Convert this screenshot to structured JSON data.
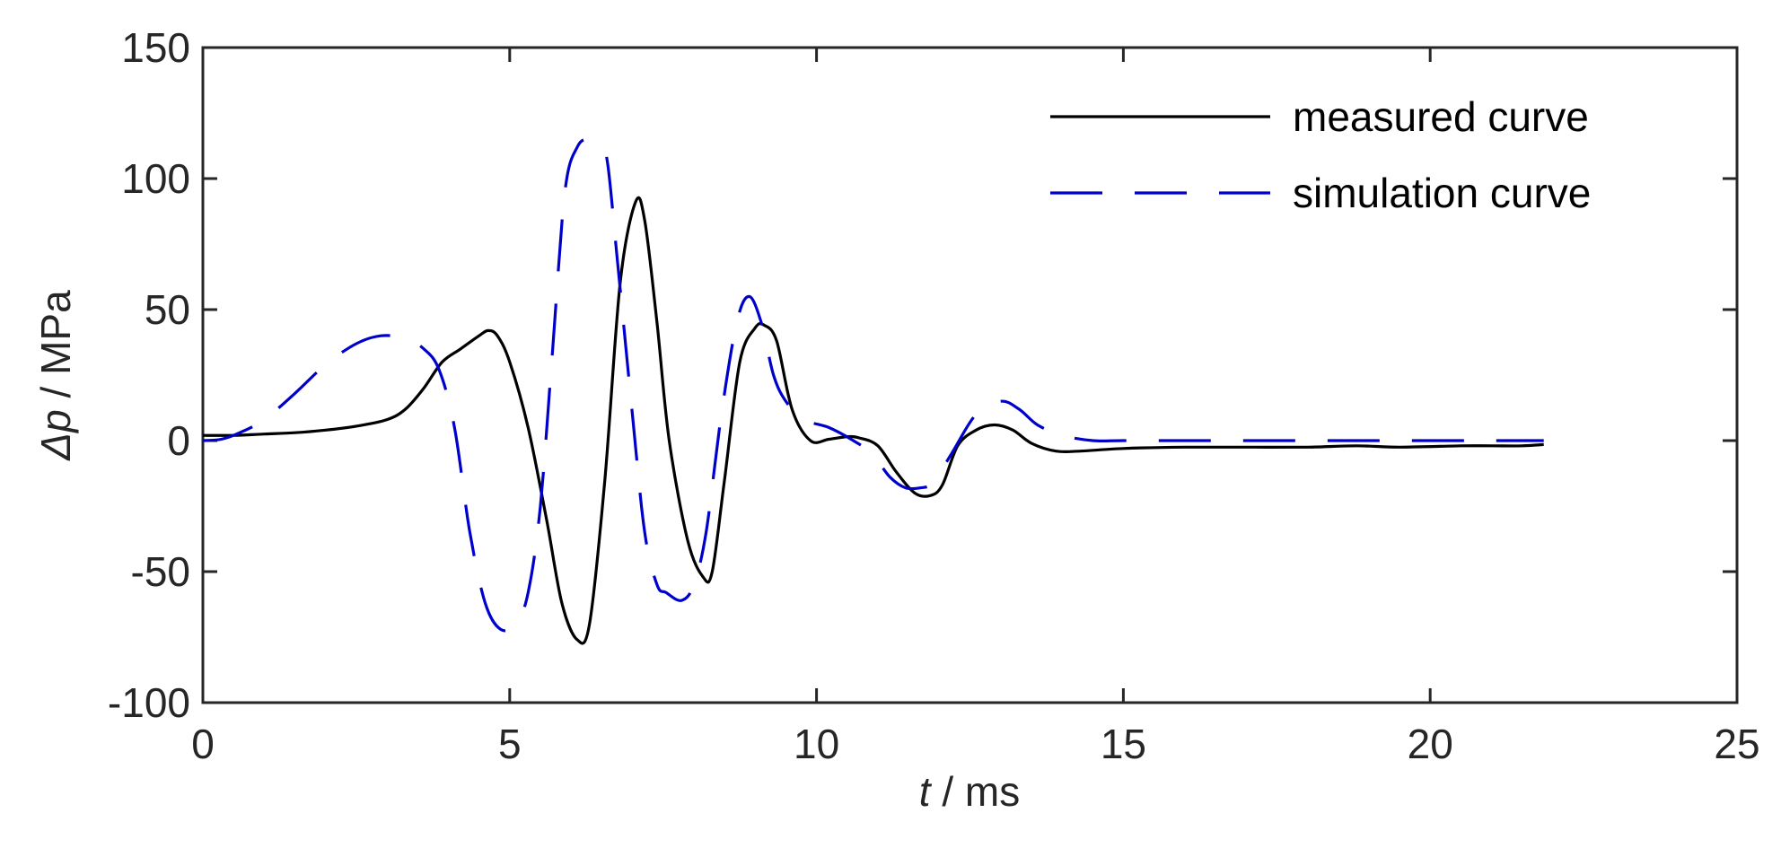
{
  "chart_data": {
    "type": "line",
    "xlabel_var": "t",
    "xlabel_unit": " / ms",
    "ylabel_var": "p",
    "ylabel_prefix": "Δ",
    "ylabel_unit": " / MPa",
    "xlim": [
      0,
      25
    ],
    "ylim": [
      -100,
      150
    ],
    "xticks": [
      0,
      5,
      10,
      15,
      20,
      25
    ],
    "yticks": [
      -100,
      -50,
      0,
      50,
      100,
      150
    ],
    "xtick_labels": [
      "0",
      "5",
      "10",
      "15",
      "20",
      "25"
    ],
    "ytick_labels": [
      "-100",
      "-50",
      "0",
      "50",
      "100",
      "150"
    ],
    "grid": false,
    "legend_position": "top-right",
    "series": [
      {
        "name": "measured curve",
        "color": "#000000",
        "style": "solid",
        "x": [
          0,
          0.5,
          1,
          1.5,
          2,
          2.5,
          3,
          3.3,
          3.6,
          3.9,
          4.2,
          4.5,
          4.65,
          4.8,
          5.0,
          5.3,
          5.6,
          5.85,
          6.1,
          6.3,
          6.55,
          6.8,
          7.05,
          7.2,
          7.4,
          7.6,
          7.9,
          8.15,
          8.3,
          8.5,
          8.75,
          9.0,
          9.15,
          9.35,
          9.6,
          9.9,
          10.2,
          10.5,
          10.7,
          11.0,
          11.3,
          11.6,
          11.85,
          12.05,
          12.3,
          12.6,
          12.9,
          13.2,
          13.5,
          13.9,
          14.3,
          15,
          16,
          17,
          18,
          18.8,
          19.5,
          20.5,
          21,
          21.5,
          21.85
        ],
        "y": [
          2,
          2,
          2.5,
          3,
          4,
          5.5,
          8,
          12,
          20,
          30,
          35,
          40,
          42,
          40,
          30,
          5,
          -30,
          -62,
          -76,
          -70,
          -15,
          60,
          91,
          84,
          45,
          0,
          -38,
          -52,
          -50,
          -15,
          30,
          43,
          44,
          38,
          12,
          0,
          0.5,
          1.5,
          1,
          -2,
          -12,
          -20,
          -21,
          -17,
          -2,
          4,
          6,
          4,
          -1,
          -4,
          -4,
          -3,
          -2.5,
          -2.5,
          -2.5,
          -2,
          -2.5,
          -2,
          -2,
          -2,
          -1.5
        ]
      },
      {
        "name": "simulation curve",
        "color": "#0000cc",
        "style": "dashed",
        "x": [
          0,
          0.3,
          0.6,
          1.0,
          1.5,
          2.0,
          2.5,
          2.9,
          3.3,
          3.6,
          3.85,
          4.1,
          4.35,
          4.6,
          4.85,
          5.1,
          5.3,
          5.5,
          5.7,
          5.9,
          6.1,
          6.3,
          6.5,
          6.6,
          6.75,
          7.0,
          7.2,
          7.4,
          7.55,
          7.8,
          8.0,
          8.2,
          8.45,
          8.7,
          8.9,
          9.1,
          9.3,
          9.5,
          9.8,
          10.2,
          10.6,
          10.9,
          11.2,
          11.45,
          11.7,
          11.9,
          12.2,
          12.6,
          13.0,
          13.3,
          13.6,
          14.0,
          14.5,
          15,
          16,
          17,
          18,
          19,
          20,
          21,
          21.85
        ],
        "y": [
          0,
          0.5,
          3,
          8,
          18,
          29,
          37,
          40,
          39,
          35,
          27,
          5,
          -35,
          -62,
          -72,
          -70,
          -58,
          -25,
          35,
          95,
          112,
          115,
          112,
          105,
          70,
          10,
          -35,
          -55,
          -58,
          -61,
          -55,
          -35,
          10,
          45,
          55,
          45,
          25,
          15,
          8,
          5,
          0,
          -5,
          -14,
          -18,
          -18,
          -16,
          -5,
          10,
          15,
          12,
          6,
          2,
          0,
          0,
          0,
          0,
          0,
          0,
          0,
          0,
          0
        ]
      }
    ]
  }
}
